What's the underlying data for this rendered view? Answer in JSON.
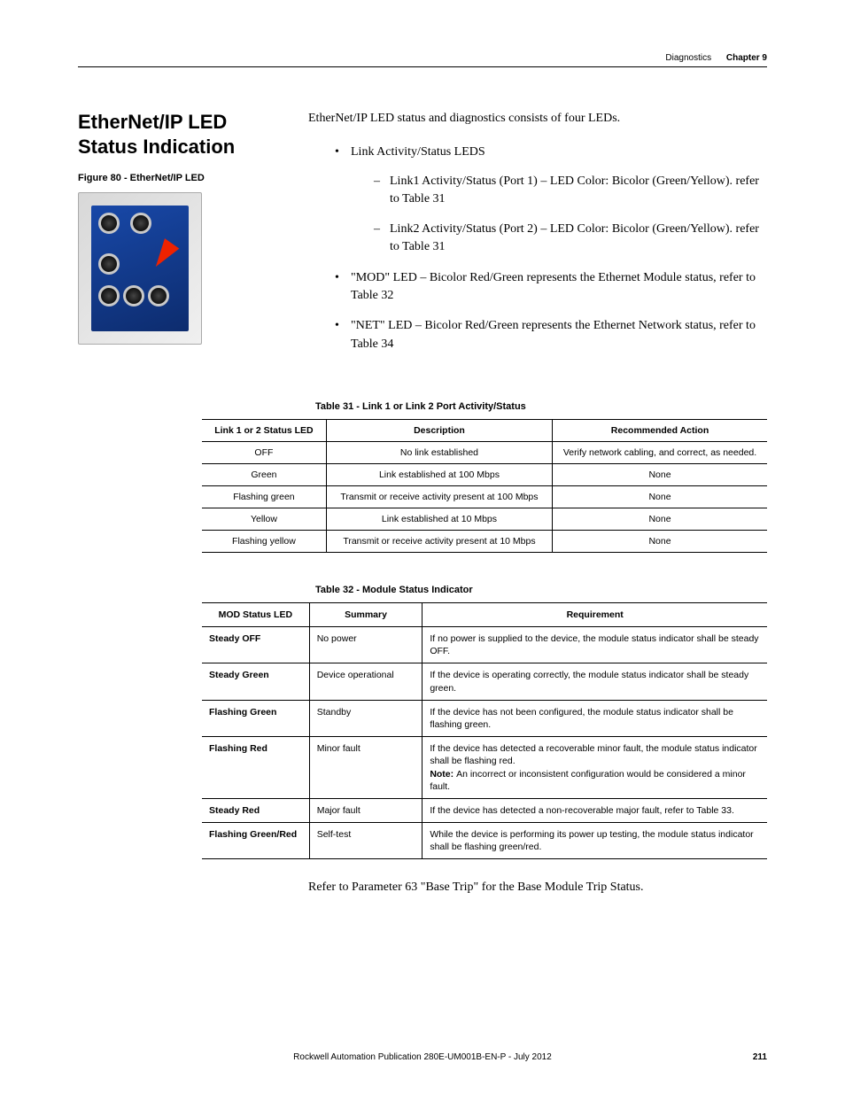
{
  "header": {
    "section": "Diagnostics",
    "chapter": "Chapter 9"
  },
  "heading": "EtherNet/IP LED Status Indication",
  "figure_caption": "Figure 80 - EtherNet/IP LED",
  "intro": "EtherNet/IP LED status and diagnostics consists of four LEDs.",
  "bullets": [
    {
      "text": "Link Activity/Status LEDS",
      "subs": [
        "Link1 Activity/Status (Port 1) – LED Color: Bicolor (Green/Yellow). refer to Table 31",
        "Link2 Activity/Status (Port 2) – LED Color: Bicolor (Green/Yellow). refer to Table 31"
      ]
    },
    {
      "text": "\"MOD\" LED – Bicolor Red/Green represents the Ethernet Module status, refer to Table 32"
    },
    {
      "text": "\"NET\" LED – Bicolor Red/Green represents the Ethernet Network status, refer to Table 34"
    }
  ],
  "table31": {
    "caption": "Table 31 - Link 1 or Link 2 Port Activity/Status",
    "headers": [
      "Link 1 or 2 Status LED",
      "Description",
      "Recommended Action"
    ],
    "rows": [
      [
        "OFF",
        "No link established",
        "Verify network cabling, and correct, as needed."
      ],
      [
        "Green",
        "Link established at 100 Mbps",
        "None"
      ],
      [
        "Flashing green",
        "Transmit or receive activity present at 100 Mbps",
        "None"
      ],
      [
        "Yellow",
        "Link established at 10 Mbps",
        "None"
      ],
      [
        "Flashing yellow",
        "Transmit or receive activity present at 10 Mbps",
        "None"
      ]
    ]
  },
  "table32": {
    "caption": "Table 32 - Module Status Indicator",
    "headers": [
      "MOD Status LED",
      "Summary",
      "Requirement"
    ],
    "rows": [
      [
        "Steady OFF",
        "No power",
        "If no power is supplied to the device, the module status indicator shall be steady OFF."
      ],
      [
        "Steady Green",
        "Device operational",
        "If the device is operating correctly, the module status indicator shall be steady green."
      ],
      [
        "Flashing Green",
        "Standby",
        "If the device has not been configured, the module status indicator shall be flashing green."
      ],
      [
        "Flashing Red",
        "Minor fault",
        "If the device has detected a recoverable minor fault, the module status indicator shall be flashing red.\n__NOTE__An incorrect or inconsistent configuration would be considered a minor fault."
      ],
      [
        "Steady Red",
        "Major fault",
        "If the device has detected a non-recoverable major fault, refer to Table 33."
      ],
      [
        "Flashing Green/Red",
        "Self-test",
        "While the device is performing its power up testing, the module status indicator shall be flashing green/red."
      ]
    ]
  },
  "closing": "Refer to Parameter 63 \"Base Trip\" for the Base Module Trip Status.",
  "footer": {
    "pub": "Rockwell Automation Publication 280E-UM001B-EN-P - July 2012",
    "page": "211"
  }
}
